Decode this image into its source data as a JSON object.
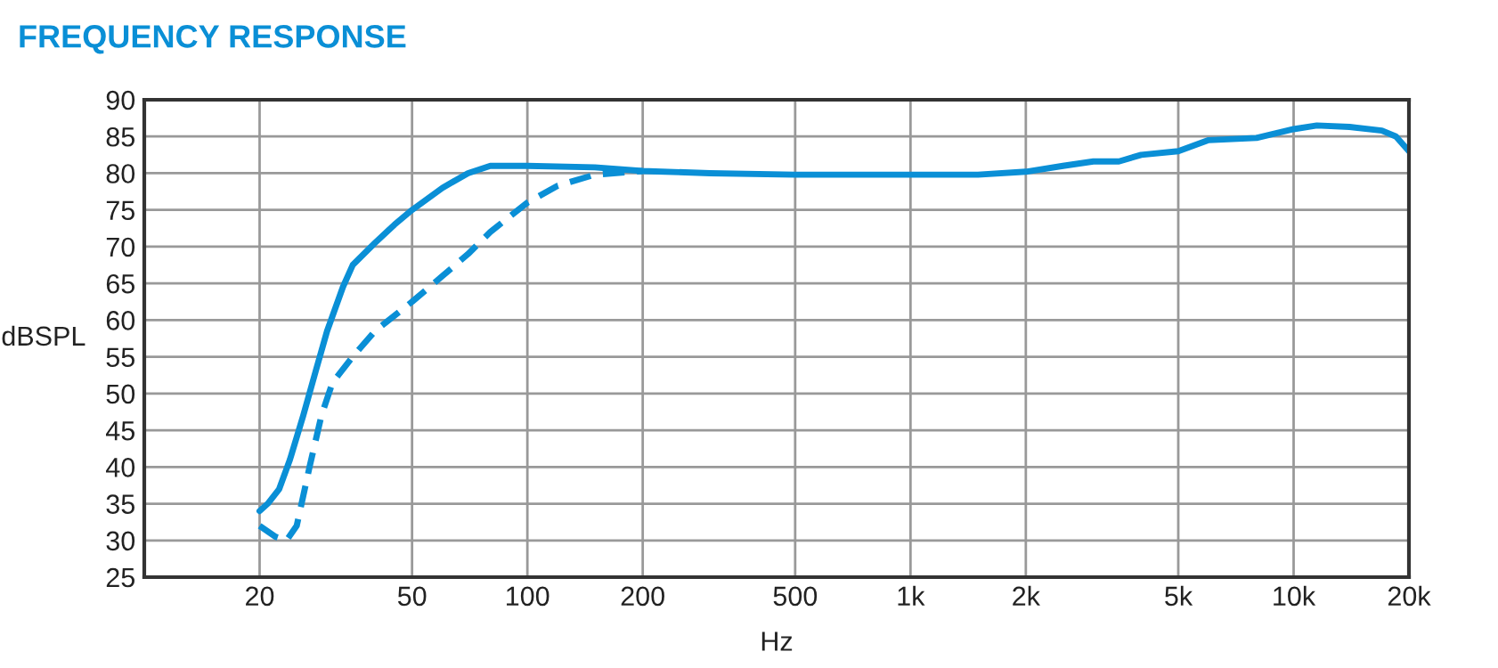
{
  "chart_data": {
    "type": "line",
    "title": "FREQUENCY RESPONSE",
    "xlabel": "Hz",
    "ylabel": "dBSPL",
    "log": "x",
    "xlim": [
      10,
      20000
    ],
    "ylim": [
      25,
      90
    ],
    "xticks": [
      20,
      50,
      100,
      200,
      500,
      {
        "value": 1000,
        "label": "1k"
      },
      {
        "value": 2000,
        "label": "2k"
      },
      {
        "value": 5000,
        "label": "5k"
      },
      {
        "value": 10000,
        "label": "10k"
      },
      {
        "value": 20000,
        "label": "20k"
      }
    ],
    "yticks": [
      25,
      30,
      35,
      40,
      45,
      50,
      55,
      60,
      65,
      70,
      75,
      80,
      85,
      90
    ],
    "grid": true,
    "marker": "none",
    "series": [
      {
        "color": "#0a8fd6",
        "line_style": "solid",
        "x": [
          20,
          21,
          22.5,
          24,
          26,
          28,
          30,
          33,
          35,
          40,
          45,
          50,
          60,
          70,
          80,
          100,
          150,
          200,
          300,
          500,
          1000,
          1500,
          2000,
          2500,
          3000,
          3500,
          4000,
          5000,
          6000,
          8000,
          10000,
          11500,
          14000,
          17000,
          18500,
          20000
        ],
        "values": [
          34,
          35,
          37,
          41,
          47,
          53,
          58.5,
          64.5,
          67.5,
          70.5,
          73,
          75,
          78,
          80,
          81,
          81,
          80.8,
          80.3,
          80,
          79.8,
          79.8,
          79.8,
          80.2,
          81,
          81.6,
          81.6,
          82.5,
          83,
          84.5,
          84.8,
          86,
          86.5,
          86.3,
          85.8,
          85,
          83
        ]
      },
      {
        "color": "#0a8fd6",
        "line_style": "dashed",
        "x": [
          20,
          22,
          23.5,
          25,
          27,
          29,
          31,
          35,
          40,
          50,
          60,
          70,
          80,
          100,
          120,
          150,
          200
        ],
        "values": [
          32,
          30.5,
          30,
          32,
          40,
          47,
          51.5,
          55,
          58.5,
          62.5,
          66,
          69,
          72,
          76,
          78.3,
          79.8,
          80.3
        ]
      }
    ]
  }
}
